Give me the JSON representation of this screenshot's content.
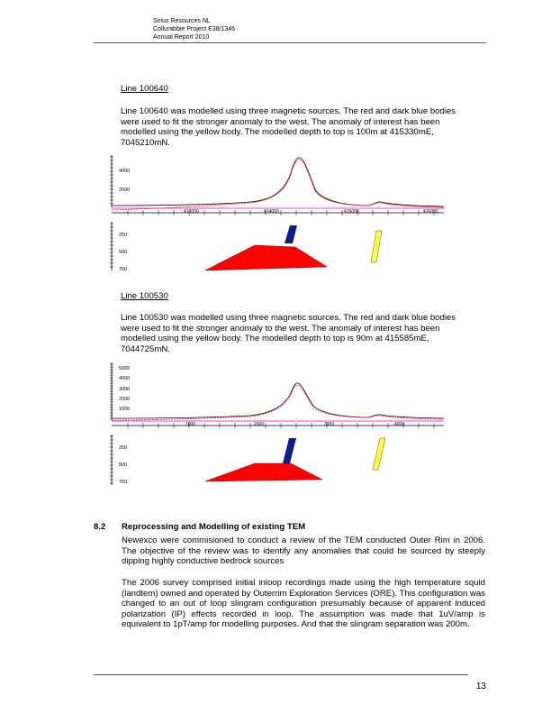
{
  "header": {
    "line1": "Sirius Resources NL",
    "line2": "Collurabbie Project E38/1346",
    "line3": "Annual Report 2010"
  },
  "section_a": {
    "heading": "Line 100640",
    "body": "Line 100640 was modelled using three magnetic sources. The red and dark blue bodies were used to fit the stronger anomaly to the west. The anomaly of interest has been modelled using the yellow body. The modelled depth to top is 100m at 415330mE, 7045210mN."
  },
  "section_b": {
    "heading": "Line 100530",
    "body": "Line 100530 was modelled using three magnetic sources. The red and dark blue bodies were used to fit the stronger anomaly to the west. The anomaly of interest has been modelled using the yellow body. The modelled depth to top is 90m at 415585mE, 7044725mN."
  },
  "chart_data": [
    {
      "type": "line",
      "y_ticks": [
        "4000",
        "2000"
      ],
      "x_ticks": [
        "413000",
        "414000",
        "415000",
        "416000"
      ],
      "depth_ticks": [
        "250",
        "500",
        "750"
      ],
      "colors": {
        "observed": "#111111",
        "calculated": "#e02020",
        "reference": "#ff33ff",
        "red_body": "#ff0000",
        "blue_body": "#0a1e8c",
        "yellow_body": "#ffff33"
      }
    },
    {
      "type": "line",
      "y_ticks": [
        "5000",
        "4000",
        "3000",
        "2000",
        "1000"
      ],
      "x_ticks": [
        "1000",
        "2000",
        "3000",
        "4000"
      ],
      "depth_ticks": [
        "250",
        "500",
        "750"
      ],
      "colors": {
        "observed": "#111111",
        "calculated": "#e02020",
        "reference": "#ff33ff",
        "red_body": "#ff0000",
        "blue_body": "#0a1e8c",
        "yellow_body": "#ffff33"
      }
    }
  ],
  "section_82": {
    "number": "8.2",
    "title": "Reprocessing and Modelling of existing TEM",
    "para1": "Newexco were commisioned to conduct a review of the TEM conducted Outer Rim in 2006.  The objective of the review was to identify any anomalies that could be sourced by steeply dipping highly conductive bedrock sources",
    "para2": "The 2006 survey comprised initial inloop recordings made using the high temperature squid (landtem) owned and operated by Outerrim Exploration Services (ORE).  This configuration was changed to an out of loop slingram configuration presumably because of apparent induced polarization (IP) effects recorded in loop.  The assumption was made that 1uV/amp is equivalent to 1pT/amp for modelling purposes.  And that the slingram separation was 200m."
  },
  "footer": {
    "page_number": "13"
  }
}
